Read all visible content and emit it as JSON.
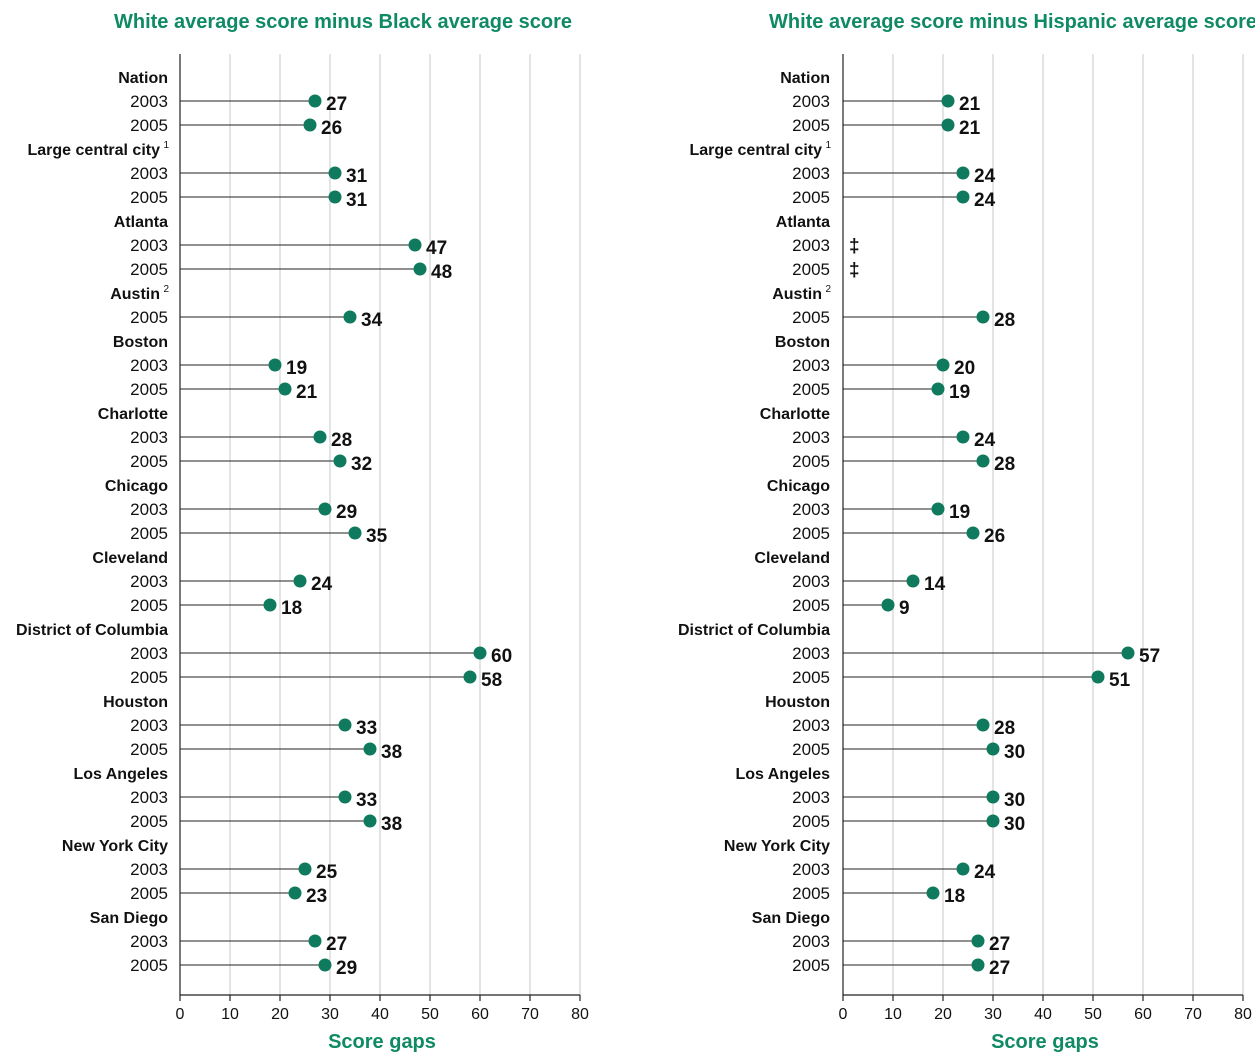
{
  "chart_data": [
    {
      "type": "lollipop",
      "title": "White average score minus Black average score",
      "xlabel": "Score gaps",
      "xlim": [
        0,
        80
      ],
      "xticks": [
        0,
        10,
        20,
        30,
        40,
        50,
        60,
        70,
        80
      ],
      "grid": true,
      "groups": [
        {
          "name": "Nation",
          "footnote": "",
          "rows": [
            {
              "year": "2003",
              "value": 27
            },
            {
              "year": "2005",
              "value": 26
            }
          ]
        },
        {
          "name": "Large central city",
          "footnote": "1",
          "rows": [
            {
              "year": "2003",
              "value": 31
            },
            {
              "year": "2005",
              "value": 31
            }
          ]
        },
        {
          "name": "Atlanta",
          "footnote": "",
          "rows": [
            {
              "year": "2003",
              "value": 47
            },
            {
              "year": "2005",
              "value": 48
            }
          ]
        },
        {
          "name": "Austin",
          "footnote": "2",
          "rows": [
            {
              "year": "2005",
              "value": 34
            }
          ]
        },
        {
          "name": "Boston",
          "footnote": "",
          "rows": [
            {
              "year": "2003",
              "value": 19
            },
            {
              "year": "2005",
              "value": 21
            }
          ]
        },
        {
          "name": "Charlotte",
          "footnote": "",
          "rows": [
            {
              "year": "2003",
              "value": 28
            },
            {
              "year": "2005",
              "value": 32
            }
          ]
        },
        {
          "name": "Chicago",
          "footnote": "",
          "rows": [
            {
              "year": "2003",
              "value": 29
            },
            {
              "year": "2005",
              "value": 35
            }
          ]
        },
        {
          "name": "Cleveland",
          "footnote": "",
          "rows": [
            {
              "year": "2003",
              "value": 24
            },
            {
              "year": "2005",
              "value": 18
            }
          ]
        },
        {
          "name": "District of Columbia",
          "footnote": "",
          "rows": [
            {
              "year": "2003",
              "value": 60
            },
            {
              "year": "2005",
              "value": 58
            }
          ]
        },
        {
          "name": "Houston",
          "footnote": "",
          "rows": [
            {
              "year": "2003",
              "value": 33
            },
            {
              "year": "2005",
              "value": 38
            }
          ]
        },
        {
          "name": "Los Angeles",
          "footnote": "",
          "rows": [
            {
              "year": "2003",
              "value": 33
            },
            {
              "year": "2005",
              "value": 38
            }
          ]
        },
        {
          "name": "New York City",
          "footnote": "",
          "rows": [
            {
              "year": "2003",
              "value": 25
            },
            {
              "year": "2005",
              "value": 23
            }
          ]
        },
        {
          "name": "San Diego",
          "footnote": "",
          "rows": [
            {
              "year": "2003",
              "value": 27
            },
            {
              "year": "2005",
              "value": 29
            }
          ]
        }
      ]
    },
    {
      "type": "lollipop",
      "title": "White average score minus Hispanic average score",
      "xlabel": "Score gaps",
      "xlim": [
        0,
        80
      ],
      "xticks": [
        0,
        10,
        20,
        30,
        40,
        50,
        60,
        70,
        80
      ],
      "grid": true,
      "groups": [
        {
          "name": "Nation",
          "footnote": "",
          "rows": [
            {
              "year": "2003",
              "value": 21
            },
            {
              "year": "2005",
              "value": 21
            }
          ]
        },
        {
          "name": "Large central city",
          "footnote": "1",
          "rows": [
            {
              "year": "2003",
              "value": 24
            },
            {
              "year": "2005",
              "value": 24
            }
          ]
        },
        {
          "name": "Atlanta",
          "footnote": "",
          "rows": [
            {
              "year": "2003",
              "value": null,
              "note": "‡"
            },
            {
              "year": "2005",
              "value": null,
              "note": "‡"
            }
          ]
        },
        {
          "name": "Austin",
          "footnote": "2",
          "rows": [
            {
              "year": "2005",
              "value": 28
            }
          ]
        },
        {
          "name": "Boston",
          "footnote": "",
          "rows": [
            {
              "year": "2003",
              "value": 20
            },
            {
              "year": "2005",
              "value": 19
            }
          ]
        },
        {
          "name": "Charlotte",
          "footnote": "",
          "rows": [
            {
              "year": "2003",
              "value": 24
            },
            {
              "year": "2005",
              "value": 28
            }
          ]
        },
        {
          "name": "Chicago",
          "footnote": "",
          "rows": [
            {
              "year": "2003",
              "value": 19
            },
            {
              "year": "2005",
              "value": 26
            }
          ]
        },
        {
          "name": "Cleveland",
          "footnote": "",
          "rows": [
            {
              "year": "2003",
              "value": 14
            },
            {
              "year": "2005",
              "value": 9
            }
          ]
        },
        {
          "name": "District of Columbia",
          "footnote": "",
          "rows": [
            {
              "year": "2003",
              "value": 57
            },
            {
              "year": "2005",
              "value": 51
            }
          ]
        },
        {
          "name": "Houston",
          "footnote": "",
          "rows": [
            {
              "year": "2003",
              "value": 28
            },
            {
              "year": "2005",
              "value": 30
            }
          ]
        },
        {
          "name": "Los Angeles",
          "footnote": "",
          "rows": [
            {
              "year": "2003",
              "value": 30
            },
            {
              "year": "2005",
              "value": 30
            }
          ]
        },
        {
          "name": "New York City",
          "footnote": "",
          "rows": [
            {
              "year": "2003",
              "value": 24
            },
            {
              "year": "2005",
              "value": 18
            }
          ]
        },
        {
          "name": "San Diego",
          "footnote": "",
          "rows": [
            {
              "year": "2003",
              "value": 27
            },
            {
              "year": "2005",
              "value": 27
            }
          ]
        }
      ]
    }
  ],
  "colors": {
    "accent": "#0f8a64",
    "marker": "#0f7a5e",
    "gridline": "#c8c8c8",
    "text": "#111111"
  }
}
